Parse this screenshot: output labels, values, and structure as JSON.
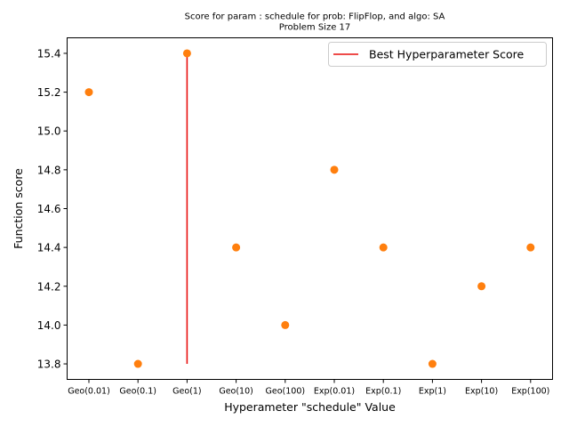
{
  "chart_data": {
    "type": "scatter",
    "title_line1": "Score for param : schedule for prob: FlipFlop, and algo: SA",
    "title_line2": "Problem Size 17",
    "xlabel": "Hyperameter \"schedule\" Value",
    "ylabel": "Function score",
    "categories": [
      "Geo(0.01)",
      "Geo(0.1)",
      "Geo(1)",
      "Geo(10)",
      "Geo(100)",
      "Exp(0.01)",
      "Exp(0.1)",
      "Exp(1)",
      "Exp(10)",
      "Exp(100)"
    ],
    "values": [
      15.2,
      13.8,
      15.4,
      14.4,
      14.0,
      14.8,
      14.4,
      13.8,
      14.2,
      14.4
    ],
    "ylim": [
      13.72,
      15.48
    ],
    "yticks": [
      13.8,
      14.0,
      14.2,
      14.4,
      14.6,
      14.8,
      15.0,
      15.2,
      15.4
    ],
    "ytick_labels": [
      "13.8",
      "14.0",
      "14.2",
      "14.4",
      "14.6",
      "14.8",
      "15.0",
      "15.2",
      "15.4"
    ],
    "best_line": {
      "category_index": 2,
      "ymin": 13.8,
      "ymax": 15.4,
      "color": "#e8100f"
    },
    "point_color": "#ff7f0e",
    "legend": {
      "label": "Best Hyperparameter Score",
      "placement": "top-right"
    },
    "grid": false
  }
}
